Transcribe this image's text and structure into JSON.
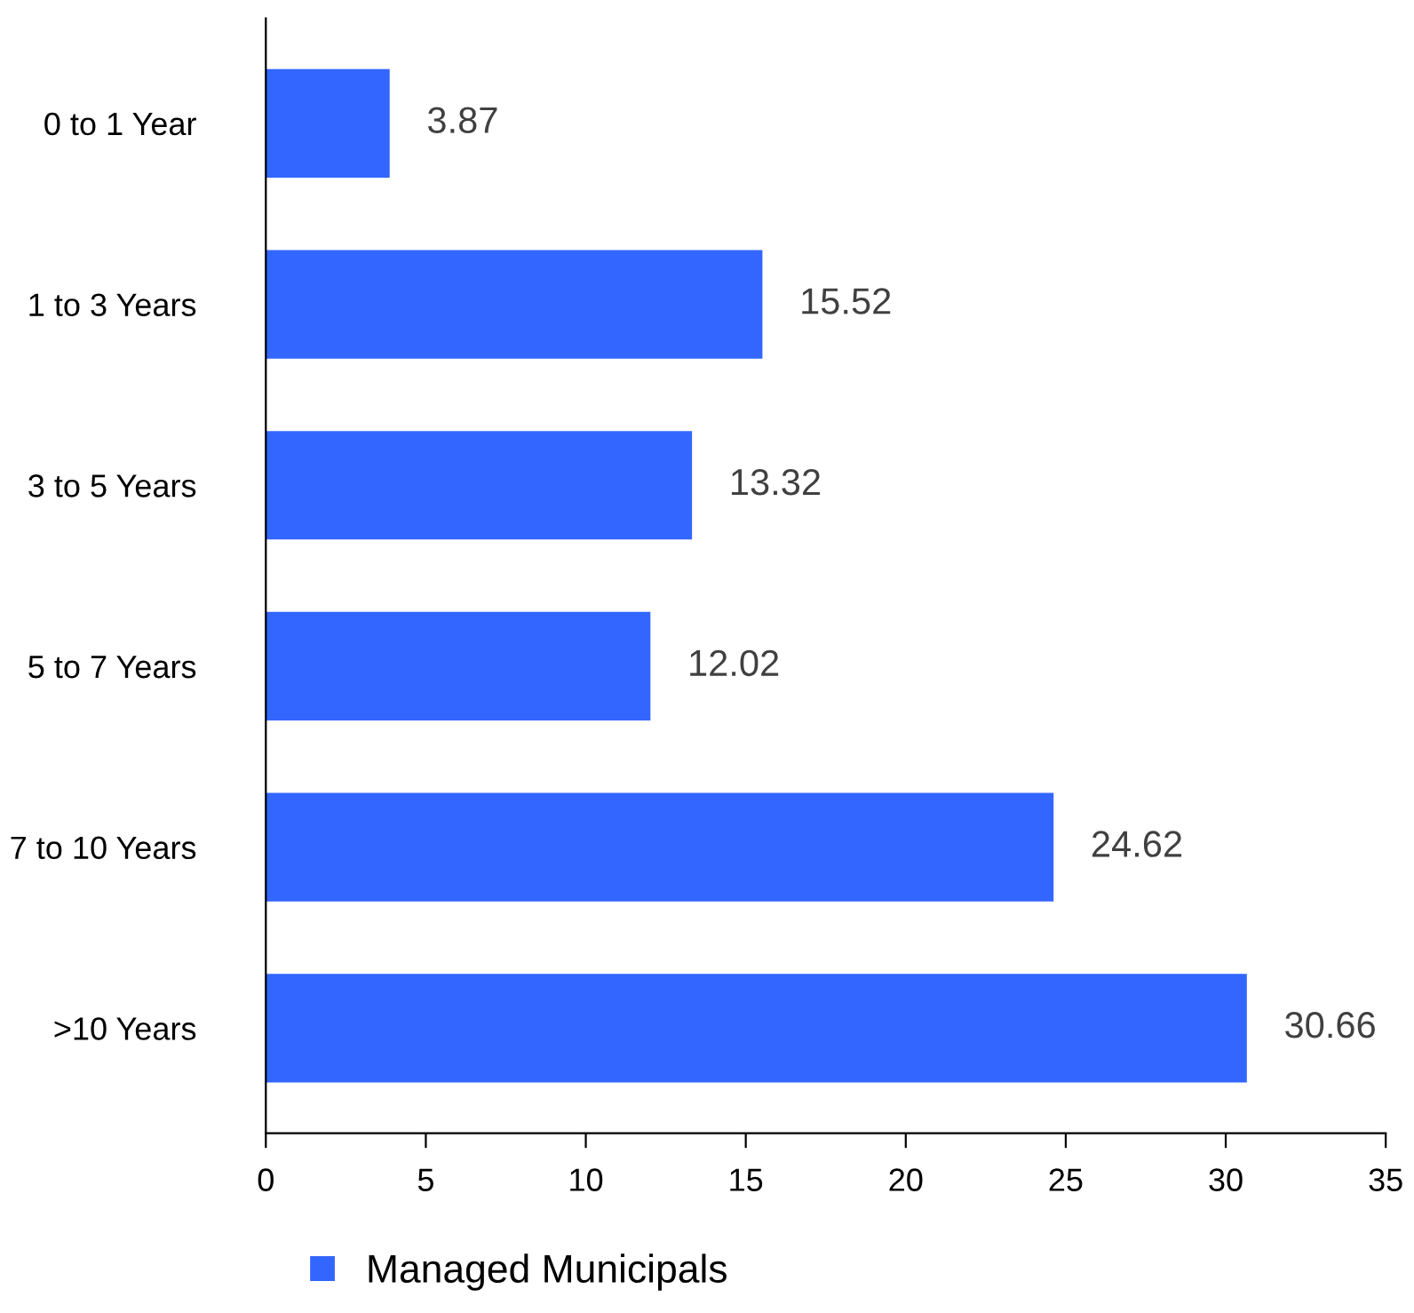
{
  "chart_data": {
    "type": "bar",
    "orientation": "horizontal",
    "categories": [
      "0 to 1 Year",
      "1 to 3 Years",
      "3 to 5 Years",
      "5 to 7 Years",
      "7 to 10 Years",
      ">10 Years"
    ],
    "series": [
      {
        "name": "Managed Municipals",
        "color": "#3366ff",
        "values": [
          3.87,
          15.52,
          13.32,
          12.02,
          24.62,
          30.66
        ]
      }
    ],
    "xlim": [
      0,
      35
    ],
    "xticks": [
      0,
      5,
      10,
      15,
      20,
      25,
      30,
      35
    ],
    "data_labels": true,
    "grid": false,
    "legend": "bottom left"
  }
}
